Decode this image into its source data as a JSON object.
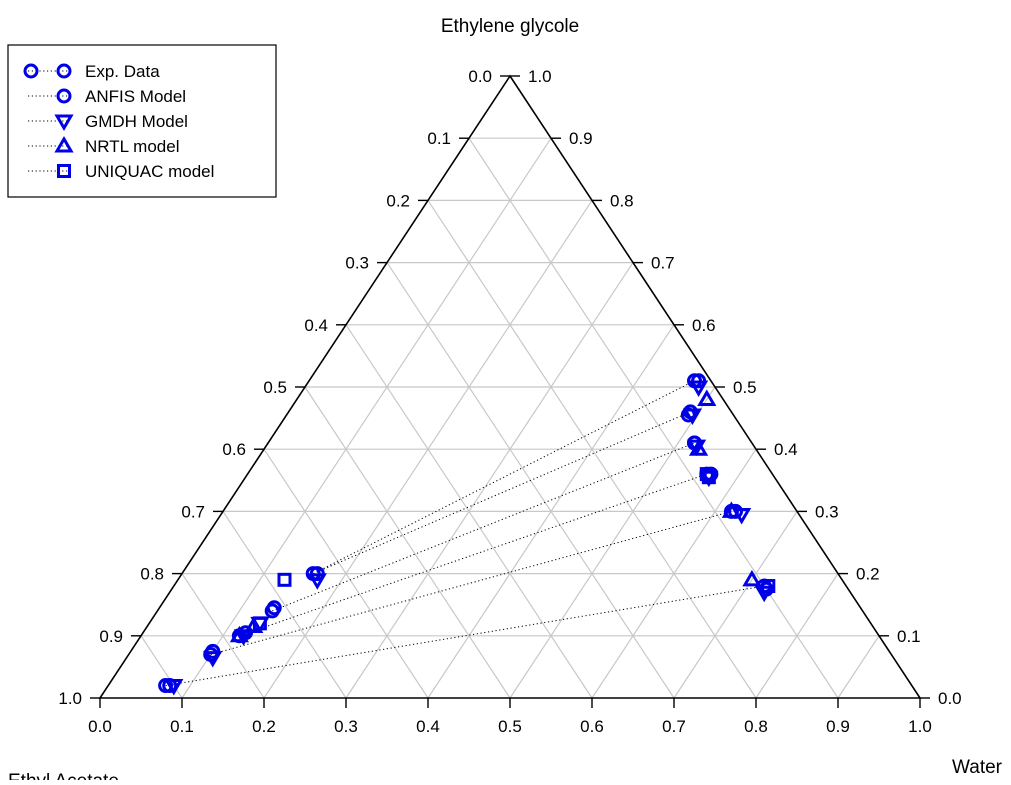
{
  "chart_data": {
    "type": "scatter",
    "subtype": "ternary",
    "title": "",
    "axis_labels": {
      "top": "Ethylene glycole",
      "right": "Water",
      "bottom_left_partial": "Ethyl Acetate"
    },
    "scale": [
      0,
      1
    ],
    "ticks": {
      "left": [
        "0.0",
        "0.1",
        "0.2",
        "0.3",
        "0.4",
        "0.5",
        "0.6",
        "0.7",
        "0.8",
        "0.9",
        "1.0"
      ],
      "right": [
        "1.0",
        "0.9",
        "0.8",
        "0.7",
        "0.6",
        "0.5",
        "0.4",
        "0.3",
        "0.2",
        "0.1",
        "0.0"
      ],
      "bottom": [
        "0.0",
        "0.1",
        "0.2",
        "0.3",
        "0.4",
        "0.5",
        "0.6",
        "0.7",
        "0.8",
        "0.9",
        "1.0"
      ]
    },
    "grid": true,
    "grid_step": 0.1,
    "legend_position": "top-left",
    "marker_color": "#0000e6",
    "series": [
      {
        "name": "Exp. Data",
        "marker": "circle",
        "points": [
          {
            "water": 0.07,
            "eg": 0.02
          },
          {
            "water": 0.1,
            "eg": 0.07
          },
          {
            "water": 0.12,
            "eg": 0.1
          },
          {
            "water": 0.14,
            "eg": 0.14
          },
          {
            "water": 0.16,
            "eg": 0.2
          },
          {
            "water": 0.47,
            "eg": 0.51
          },
          {
            "water": 0.49,
            "eg": 0.46
          },
          {
            "water": 0.52,
            "eg": 0.41
          },
          {
            "water": 0.56,
            "eg": 0.36
          },
          {
            "water": 0.62,
            "eg": 0.3
          },
          {
            "water": 0.72,
            "eg": 0.18
          }
        ]
      },
      {
        "name": "ANFIS Model",
        "marker": "circle",
        "points": [
          {
            "water": 0.075,
            "eg": 0.02
          },
          {
            "water": 0.1,
            "eg": 0.075
          },
          {
            "water": 0.125,
            "eg": 0.105
          },
          {
            "water": 0.14,
            "eg": 0.145
          },
          {
            "water": 0.165,
            "eg": 0.2
          },
          {
            "water": 0.475,
            "eg": 0.51
          },
          {
            "water": 0.49,
            "eg": 0.455
          },
          {
            "water": 0.52,
            "eg": 0.41
          },
          {
            "water": 0.565,
            "eg": 0.36
          },
          {
            "water": 0.625,
            "eg": 0.3
          },
          {
            "water": 0.725,
            "eg": 0.175
          }
        ]
      },
      {
        "name": "GMDH Model",
        "marker": "triangle-down",
        "points": [
          {
            "water": 0.08,
            "eg": 0.02
          },
          {
            "water": 0.105,
            "eg": 0.065
          },
          {
            "water": 0.125,
            "eg": 0.1
          },
          {
            "water": 0.135,
            "eg": 0.12
          },
          {
            "water": 0.17,
            "eg": 0.19
          },
          {
            "water": 0.48,
            "eg": 0.5
          },
          {
            "water": 0.495,
            "eg": 0.455
          },
          {
            "water": 0.525,
            "eg": 0.405
          },
          {
            "water": 0.565,
            "eg": 0.355
          },
          {
            "water": 0.635,
            "eg": 0.295
          },
          {
            "water": 0.725,
            "eg": 0.17
          }
        ]
      },
      {
        "name": "NRTL model",
        "marker": "triangle-up",
        "points": [
          {
            "water": 0.12,
            "eg": 0.1
          },
          {
            "water": 0.13,
            "eg": 0.115
          },
          {
            "water": 0.5,
            "eg": 0.48
          },
          {
            "water": 0.53,
            "eg": 0.4
          },
          {
            "water": 0.62,
            "eg": 0.3
          },
          {
            "water": 0.7,
            "eg": 0.19
          }
        ]
      },
      {
        "name": "UNIQUAC model",
        "marker": "square",
        "points": [
          {
            "water": 0.13,
            "eg": 0.19
          },
          {
            "water": 0.135,
            "eg": 0.12
          },
          {
            "water": 0.56,
            "eg": 0.36
          },
          {
            "water": 0.565,
            "eg": 0.355
          },
          {
            "water": 0.725,
            "eg": 0.18
          }
        ]
      }
    ],
    "tie_lines": [
      [
        {
          "water": 0.07,
          "eg": 0.02
        },
        {
          "water": 0.72,
          "eg": 0.18
        }
      ],
      [
        {
          "water": 0.1,
          "eg": 0.07
        },
        {
          "water": 0.62,
          "eg": 0.3
        }
      ],
      [
        {
          "water": 0.12,
          "eg": 0.1
        },
        {
          "water": 0.56,
          "eg": 0.36
        }
      ],
      [
        {
          "water": 0.14,
          "eg": 0.14
        },
        {
          "water": 0.52,
          "eg": 0.41
        }
      ],
      [
        {
          "water": 0.16,
          "eg": 0.2
        },
        {
          "water": 0.49,
          "eg": 0.46
        }
      ],
      [
        {
          "water": 0.16,
          "eg": 0.2
        },
        {
          "water": 0.47,
          "eg": 0.51
        }
      ]
    ]
  }
}
